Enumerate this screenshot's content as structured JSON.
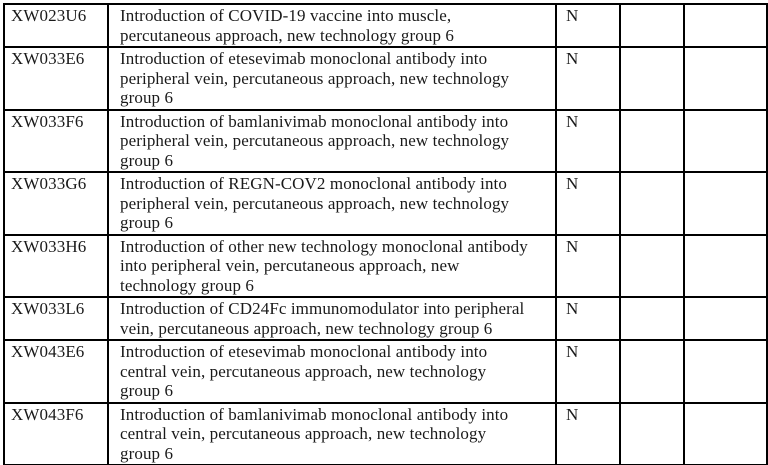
{
  "document": {
    "kind": "code-table-page",
    "text_color": "#1a1a1a",
    "border_color": "#000000",
    "background_color": "#ffffff"
  },
  "table": {
    "columns": [
      "code",
      "description",
      "flag",
      "empty-1",
      "empty-2"
    ],
    "rows": [
      {
        "code": "XW023U6",
        "description": "Introduction of COVID-19 vaccine into muscle,\npercutaneous approach, new technology group 6",
        "flag": "N",
        "extra_1": "",
        "extra_2": ""
      },
      {
        "code": "XW033E6",
        "description": "Introduction of etesevimab monoclonal antibody into\nperipheral vein, percutaneous approach, new technology\ngroup 6",
        "flag": "N",
        "extra_1": "",
        "extra_2": ""
      },
      {
        "code": "XW033F6",
        "description": "Introduction of bamlanivimab monoclonal antibody into\nperipheral vein, percutaneous approach, new technology\ngroup 6",
        "flag": "N",
        "extra_1": "",
        "extra_2": ""
      },
      {
        "code": "XW033G6",
        "description": "Introduction of REGN-COV2 monoclonal antibody into\nperipheral vein, percutaneous approach, new technology\ngroup 6",
        "flag": "N",
        "extra_1": "",
        "extra_2": ""
      },
      {
        "code": "XW033H6",
        "description": "Introduction of other new technology monoclonal antibody\ninto peripheral vein, percutaneous approach, new\ntechnology group 6",
        "flag": "N",
        "extra_1": "",
        "extra_2": ""
      },
      {
        "code": "XW033L6",
        "description": "Introduction of CD24Fc immunomodulator into peripheral\nvein, percutaneous approach, new technology group 6",
        "flag": "N",
        "extra_1": "",
        "extra_2": ""
      },
      {
        "code": "XW043E6",
        "description": "Introduction of etesevimab monoclonal antibody into\ncentral vein, percutaneous approach, new technology\ngroup 6",
        "flag": "N",
        "extra_1": "",
        "extra_2": ""
      },
      {
        "code": "XW043F6",
        "description": "Introduction of bamlanivimab monoclonal antibody into\ncentral vein, percutaneous approach, new technology\ngroup 6",
        "flag": "N",
        "extra_1": "",
        "extra_2": ""
      }
    ]
  }
}
